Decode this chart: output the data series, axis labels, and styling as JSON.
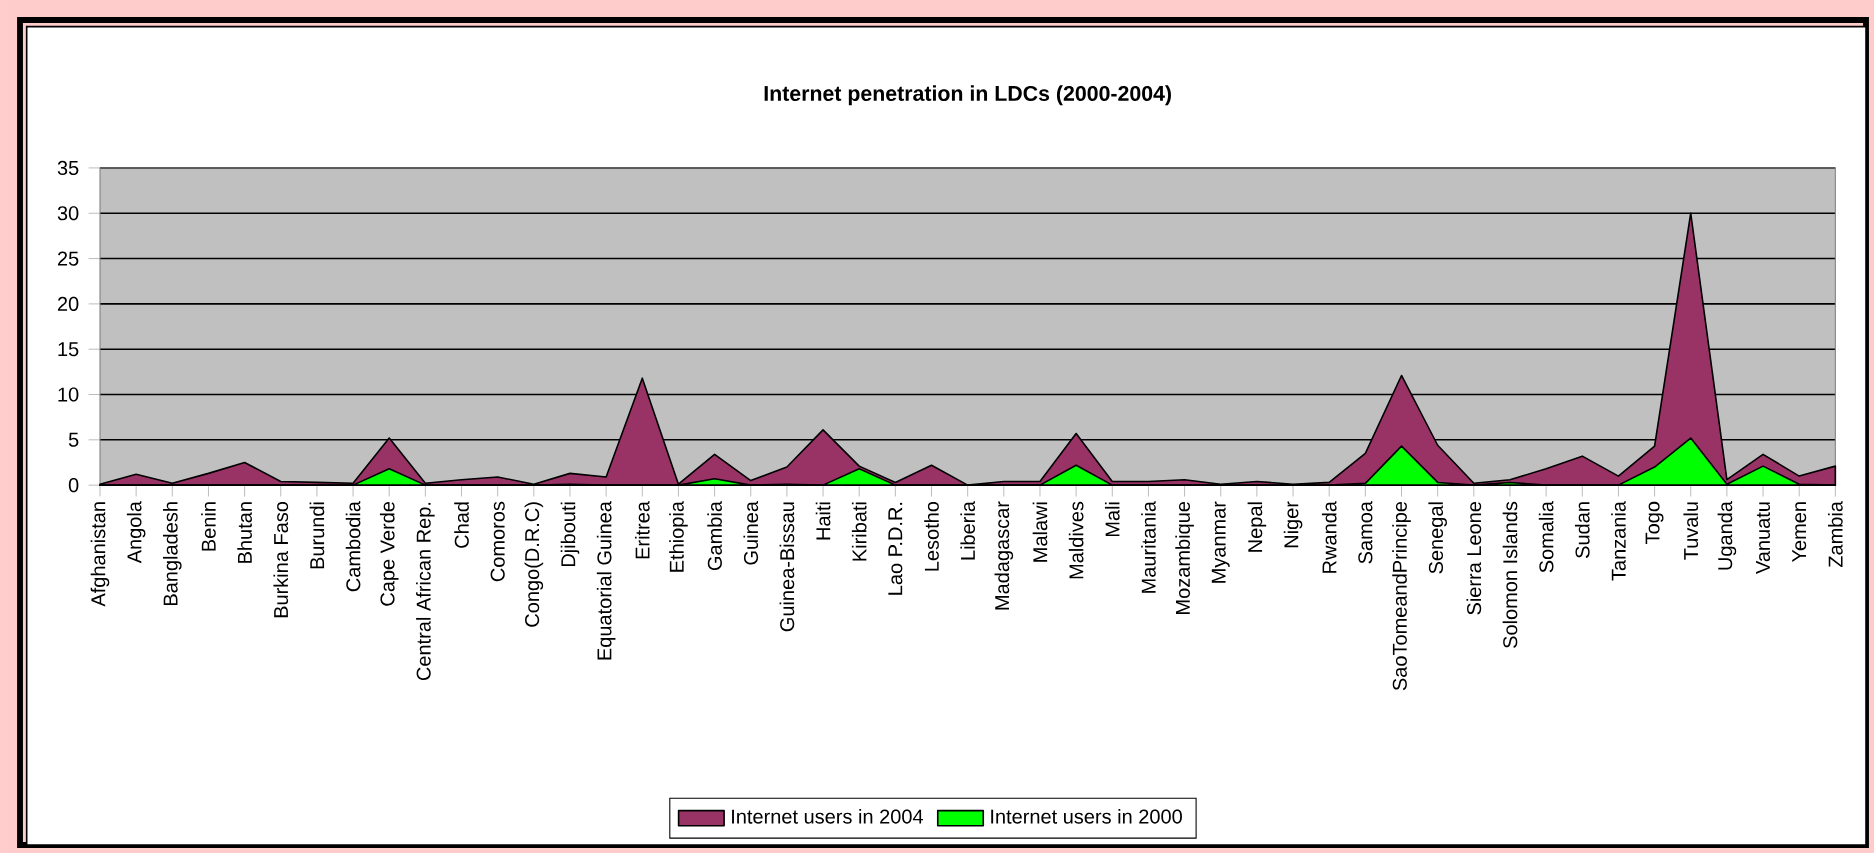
{
  "chart_data": {
    "type": "area",
    "title": "Internet penetration in LDCs (2000-2004)",
    "categories": [
      "Afghanistan",
      "Angola",
      "Bangladesh",
      "Benin",
      "Bhutan",
      "Burkina Faso",
      "Burundi",
      "Cambodia",
      "Cape Verde",
      "Central African Rep.",
      "Chad",
      "Comoros",
      "Congo(D.R.C)",
      "Djibouti",
      "Equatorial Guinea",
      "Eritrea",
      "Ethiopia",
      "Gambia",
      "Guinea",
      "Guinea-Bissau",
      "Haiti",
      "Kiribati",
      "Lao P.D.R.",
      "Lesotho",
      "Liberia",
      "Madagascar",
      "Malawi",
      "Maldives",
      "Mali",
      "Mauritania",
      "Mozambique",
      "Myanmar",
      "Nepal",
      "Niger",
      "Rwanda",
      "Samoa",
      "SaoTomeandPrincipe",
      "Senegal",
      "Sierra Leone",
      "Solomon Islands",
      "Somalia",
      "Sudan",
      "Tanzania",
      "Togo",
      "Tuvalu",
      "Uganda",
      "Vanuatu",
      "Yemen",
      "Zambia"
    ],
    "series": [
      {
        "name": "Internet users in 2004",
        "color": "#993366",
        "values": [
          0.1,
          1.2,
          0.2,
          1.3,
          2.5,
          0.4,
          0.3,
          0.2,
          5.2,
          0.2,
          0.6,
          0.9,
          0.1,
          1.3,
          0.9,
          11.8,
          0.1,
          3.4,
          0.5,
          2.0,
          6.1,
          2.1,
          0.3,
          2.2,
          0.0,
          0.4,
          0.4,
          5.7,
          0.4,
          0.4,
          0.6,
          0.1,
          0.4,
          0.1,
          0.3,
          3.5,
          12.1,
          4.4,
          0.2,
          0.6,
          1.8,
          3.2,
          1.0,
          4.3,
          30.0,
          0.6,
          3.4,
          1.0,
          2.1
        ]
      },
      {
        "name": "Internet users in 2000",
        "color": "#00ff00",
        "values": [
          0.0,
          0.0,
          0.0,
          0.0,
          0.0,
          0.0,
          0.0,
          0.0,
          1.8,
          0.0,
          0.0,
          0.0,
          0.0,
          0.1,
          0.0,
          0.0,
          0.0,
          0.7,
          0.0,
          0.1,
          0.0,
          1.8,
          0.0,
          0.0,
          0.0,
          0.0,
          0.0,
          2.2,
          0.0,
          0.0,
          0.0,
          0.0,
          0.0,
          0.0,
          0.0,
          0.2,
          4.3,
          0.3,
          0.0,
          0.3,
          0.0,
          0.0,
          0.0,
          2.0,
          5.2,
          0.1,
          2.1,
          0.1,
          0.0
        ]
      }
    ],
    "ylim": [
      0,
      35
    ],
    "yticks": [
      0,
      5,
      10,
      15,
      20,
      25,
      30,
      35
    ],
    "grid": "y",
    "legend": "bottom"
  }
}
